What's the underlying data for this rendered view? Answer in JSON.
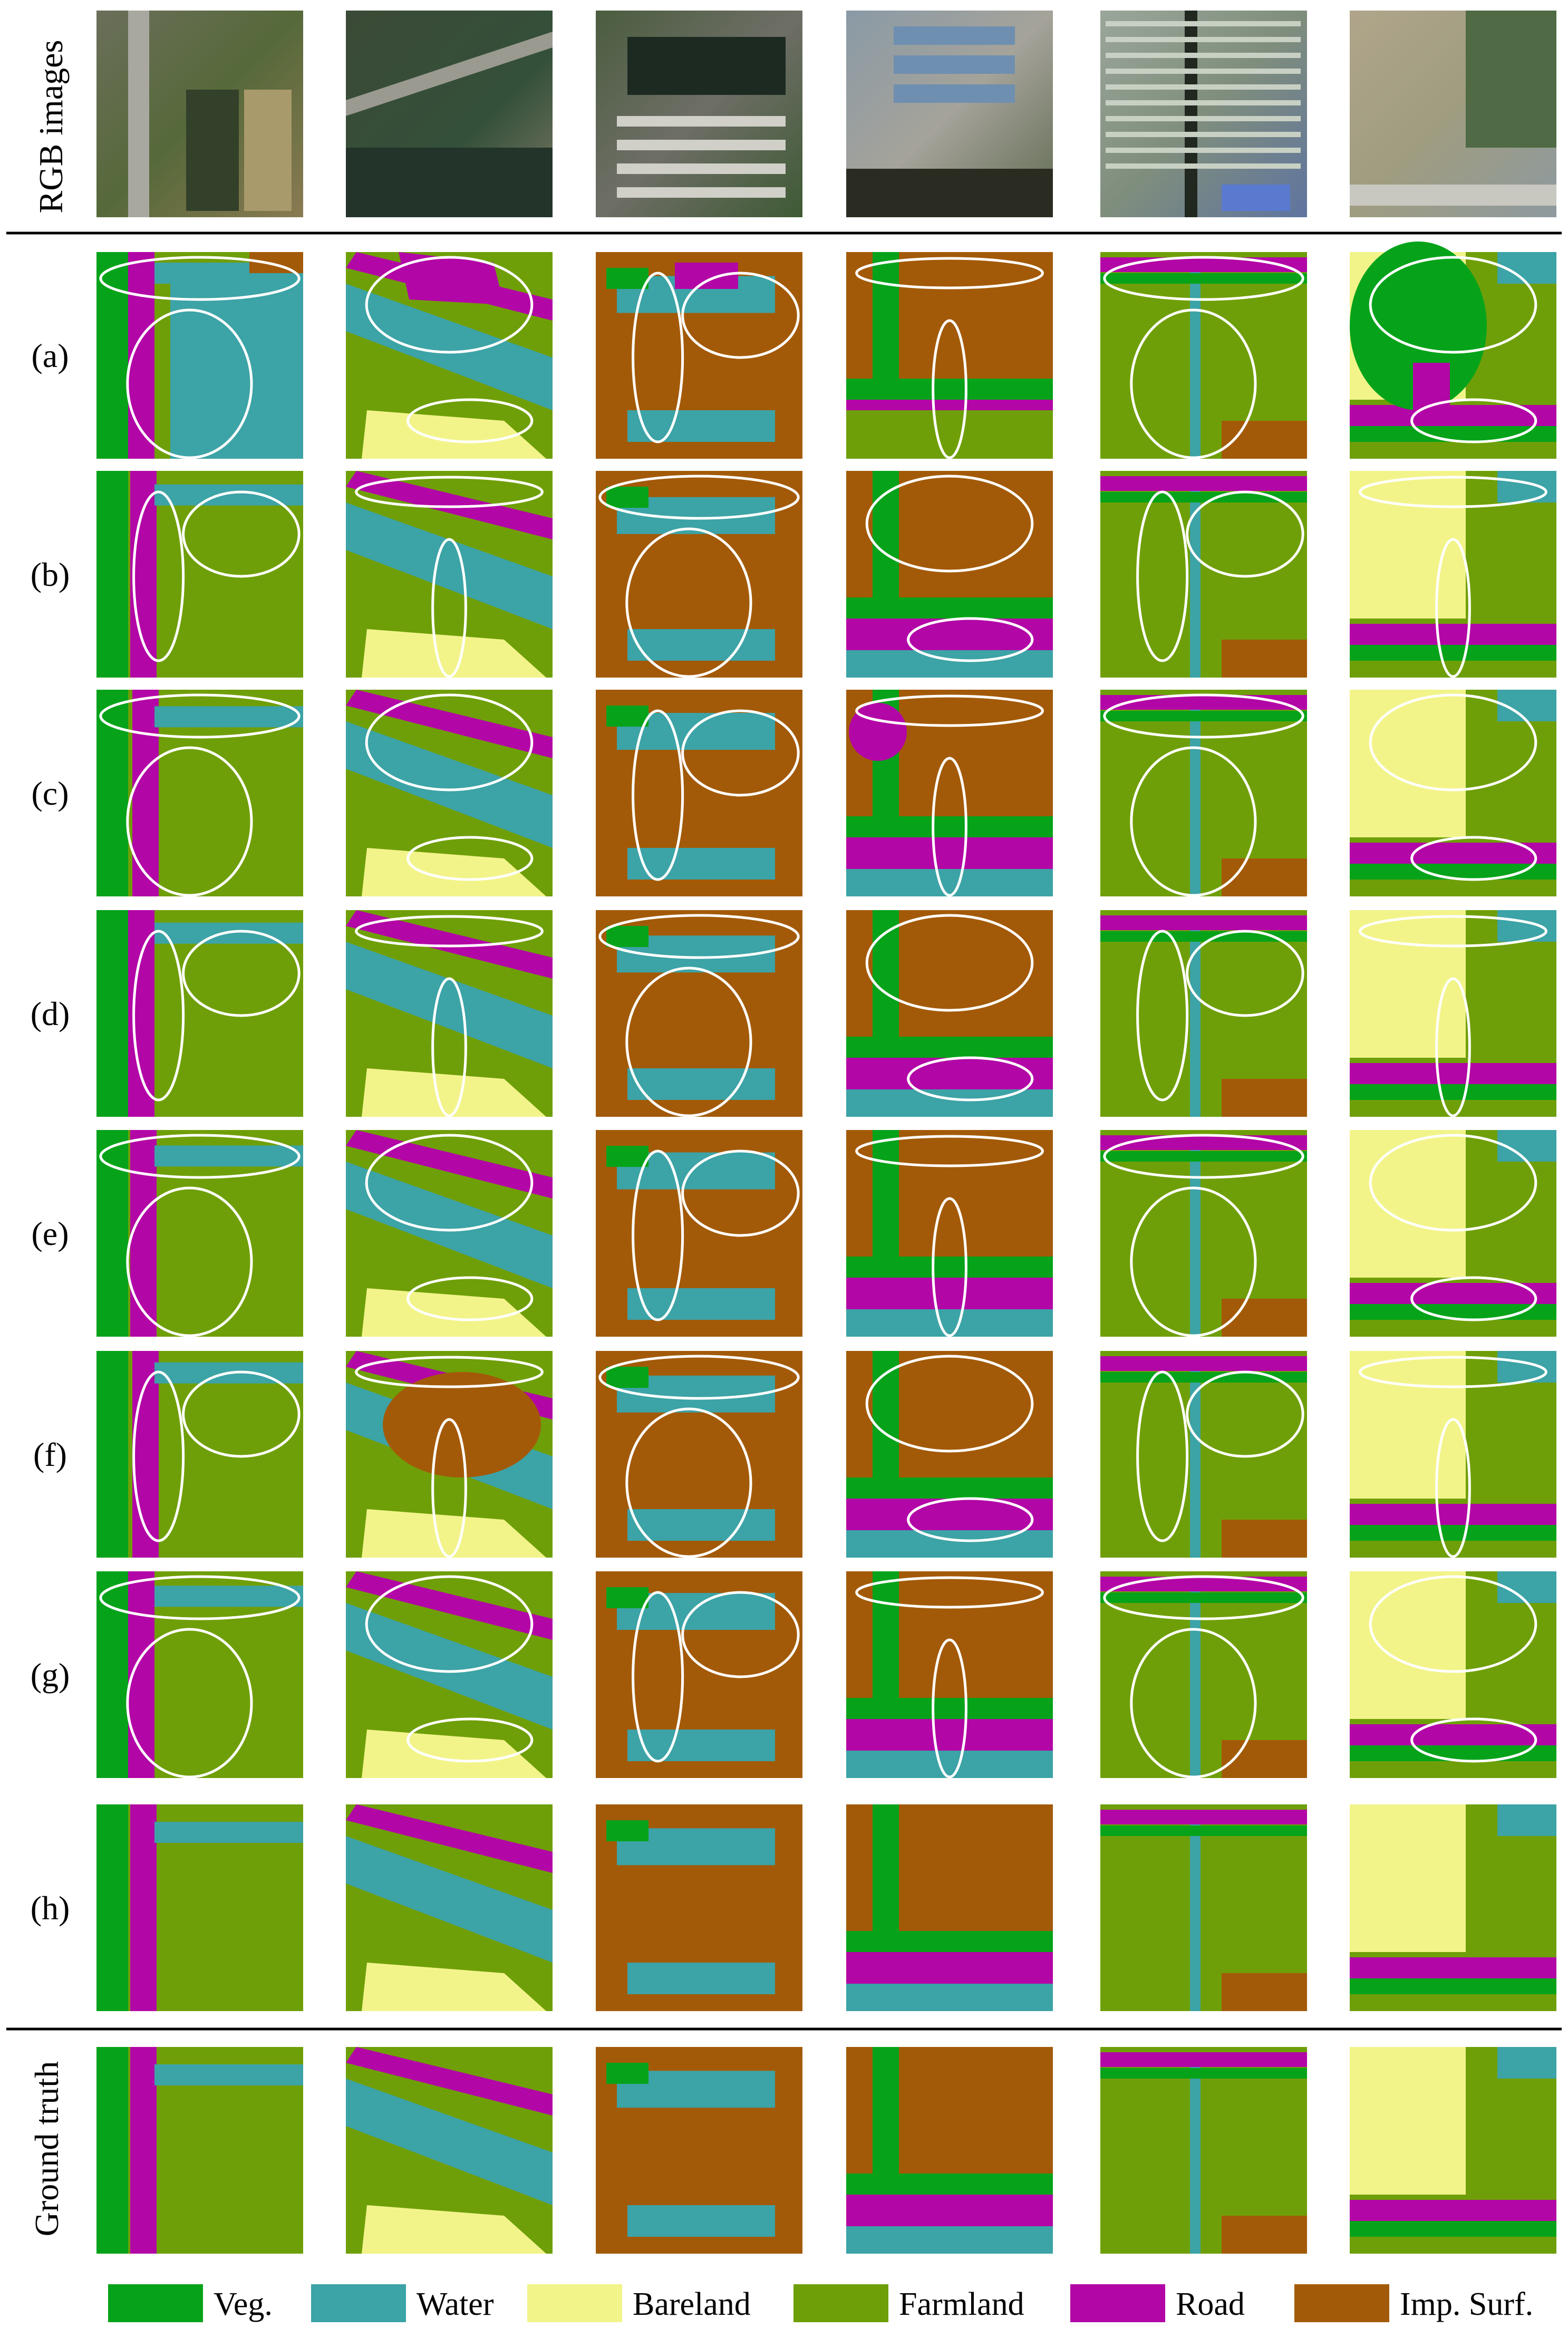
{
  "header_label": "RGB images",
  "footer_label": "Ground truth",
  "row_labels": [
    "(a)",
    "(b)",
    "(c)",
    "(d)",
    "(e)",
    "(f)",
    "(g)",
    "(h)"
  ],
  "legend": [
    {
      "label": "Veg.",
      "color": "#06A31A"
    },
    {
      "label": "Water",
      "color": "#3CA3A6"
    },
    {
      "label": "Bareland",
      "color": "#F2F48A"
    },
    {
      "label": "Farmland",
      "color": "#6F9F08"
    },
    {
      "label": "Road",
      "color": "#B306A6"
    },
    {
      "label": "Imp. Surf.",
      "color": "#A35A08"
    }
  ],
  "colors": {
    "veg": "#06A31A",
    "water": "#3CA3A6",
    "bareland": "#F2F48A",
    "farmland": "#6F9F08",
    "road": "#B306A6",
    "imp": "#A35A08",
    "ellipse": "#ffffff",
    "rule": "#000000"
  },
  "column_base_classes": [
    "farmland",
    "farmland",
    "imp",
    "imp",
    "farmland",
    "farmland"
  ]
}
